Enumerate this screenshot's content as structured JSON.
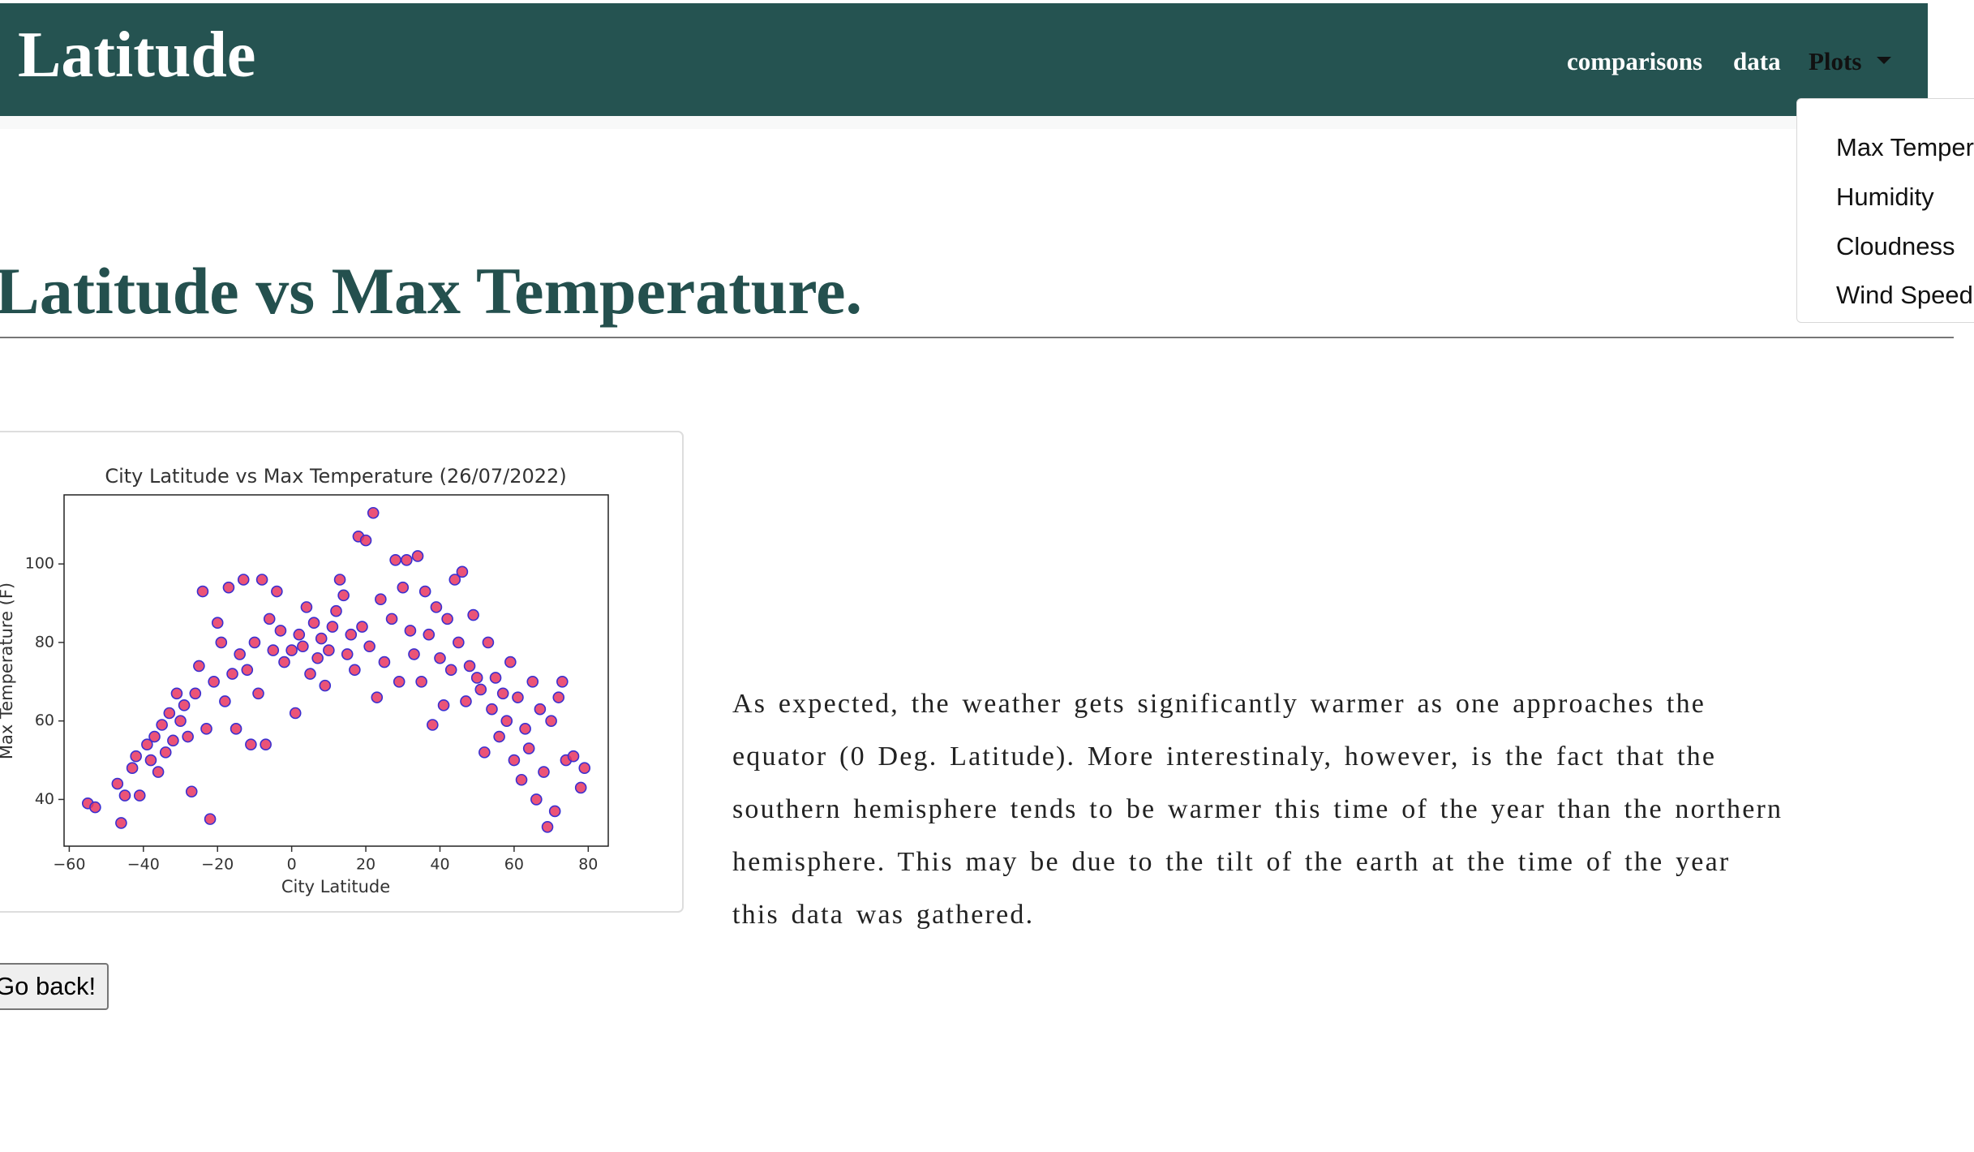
{
  "header": {
    "brand": "Latitude",
    "nav": [
      "comparisons",
      "data",
      "Plots"
    ]
  },
  "dropdown": [
    "Max Temperature",
    "Humidity",
    "Cloudness",
    "Wind Speed"
  ],
  "heading": "Latitude vs Max Temperature.",
  "chart_data": {
    "type": "scatter",
    "title": "City Latitude vs Max Temperature (26/07/2022)",
    "x_label": "City Latitude",
    "y_label": "Max Temperature (F)",
    "x": [
      -55,
      -53,
      -47,
      -46,
      -45,
      -43,
      -42,
      -41,
      -39,
      -38,
      -37,
      -36,
      -35,
      -34,
      -33,
      -32,
      -31,
      -30,
      -29,
      -28,
      -27,
      -26,
      -25,
      -24,
      -23,
      -22,
      -21,
      -20,
      -19,
      -18,
      -17,
      -16,
      -15,
      -14,
      -13,
      -12,
      -11,
      -10,
      -9,
      -8,
      -7,
      -6,
      -5,
      -4,
      -3,
      -2,
      0,
      1,
      2,
      3,
      4,
      5,
      6,
      7,
      8,
      9,
      10,
      11,
      12,
      13,
      14,
      15,
      16,
      17,
      18,
      19,
      20,
      21,
      22,
      23,
      24,
      25,
      27,
      28,
      29,
      30,
      31,
      32,
      33,
      34,
      35,
      36,
      37,
      38,
      39,
      40,
      41,
      42,
      43,
      44,
      45,
      46,
      47,
      48,
      49,
      50,
      51,
      52,
      53,
      54,
      55,
      56,
      57,
      58,
      59,
      60,
      61,
      62,
      63,
      64,
      65,
      66,
      67,
      68,
      69,
      70,
      71,
      72,
      73,
      74,
      76,
      78,
      79
    ],
    "values": [
      39,
      38,
      44,
      34,
      41,
      48,
      51,
      41,
      54,
      50,
      56,
      47,
      59,
      52,
      62,
      55,
      67,
      60,
      64,
      56,
      42,
      67,
      74,
      93,
      58,
      35,
      70,
      85,
      80,
      65,
      94,
      72,
      58,
      77,
      96,
      73,
      54,
      80,
      67,
      96,
      54,
      86,
      78,
      93,
      83,
      75,
      78,
      62,
      82,
      79,
      89,
      72,
      85,
      76,
      81,
      69,
      78,
      84,
      88,
      96,
      92,
      77,
      82,
      73,
      107,
      84,
      106,
      79,
      113,
      66,
      91,
      75,
      86,
      101,
      70,
      94,
      101,
      83,
      77,
      102,
      70,
      93,
      82,
      59,
      89,
      76,
      64,
      86,
      73,
      96,
      80,
      98,
      65,
      74,
      87,
      71,
      68,
      52,
      80,
      63,
      71,
      56,
      67,
      60,
      75,
      50,
      66,
      45,
      58,
      53,
      70,
      40,
      63,
      47,
      33,
      60,
      37,
      66,
      70,
      50,
      51,
      43,
      48
    ],
    "color": "#e8355f",
    "edge_color": "#3b2fd0",
    "xlim": [
      -61.4,
      85.4
    ],
    "ylim": [
      28.1,
      117.6
    ],
    "xticks": [
      {
        "value": -60,
        "label": "−60"
      },
      {
        "value": -40,
        "label": "−40"
      },
      {
        "value": -20,
        "label": "−20"
      },
      0,
      20,
      40,
      60,
      80
    ],
    "yticks": [
      40,
      60,
      80,
      100
    ]
  },
  "paragraph": "As expected, the weather gets significantly warmer as one approaches the equator (0 Deg. Latitude). More interestinaly, however, is the fact that the southern hemisphere tends to be warmer this time of the year than the northern hemisphere. This may be due to the tilt of the earth at the time of the year this data was gathered.",
  "button": "Go back!"
}
